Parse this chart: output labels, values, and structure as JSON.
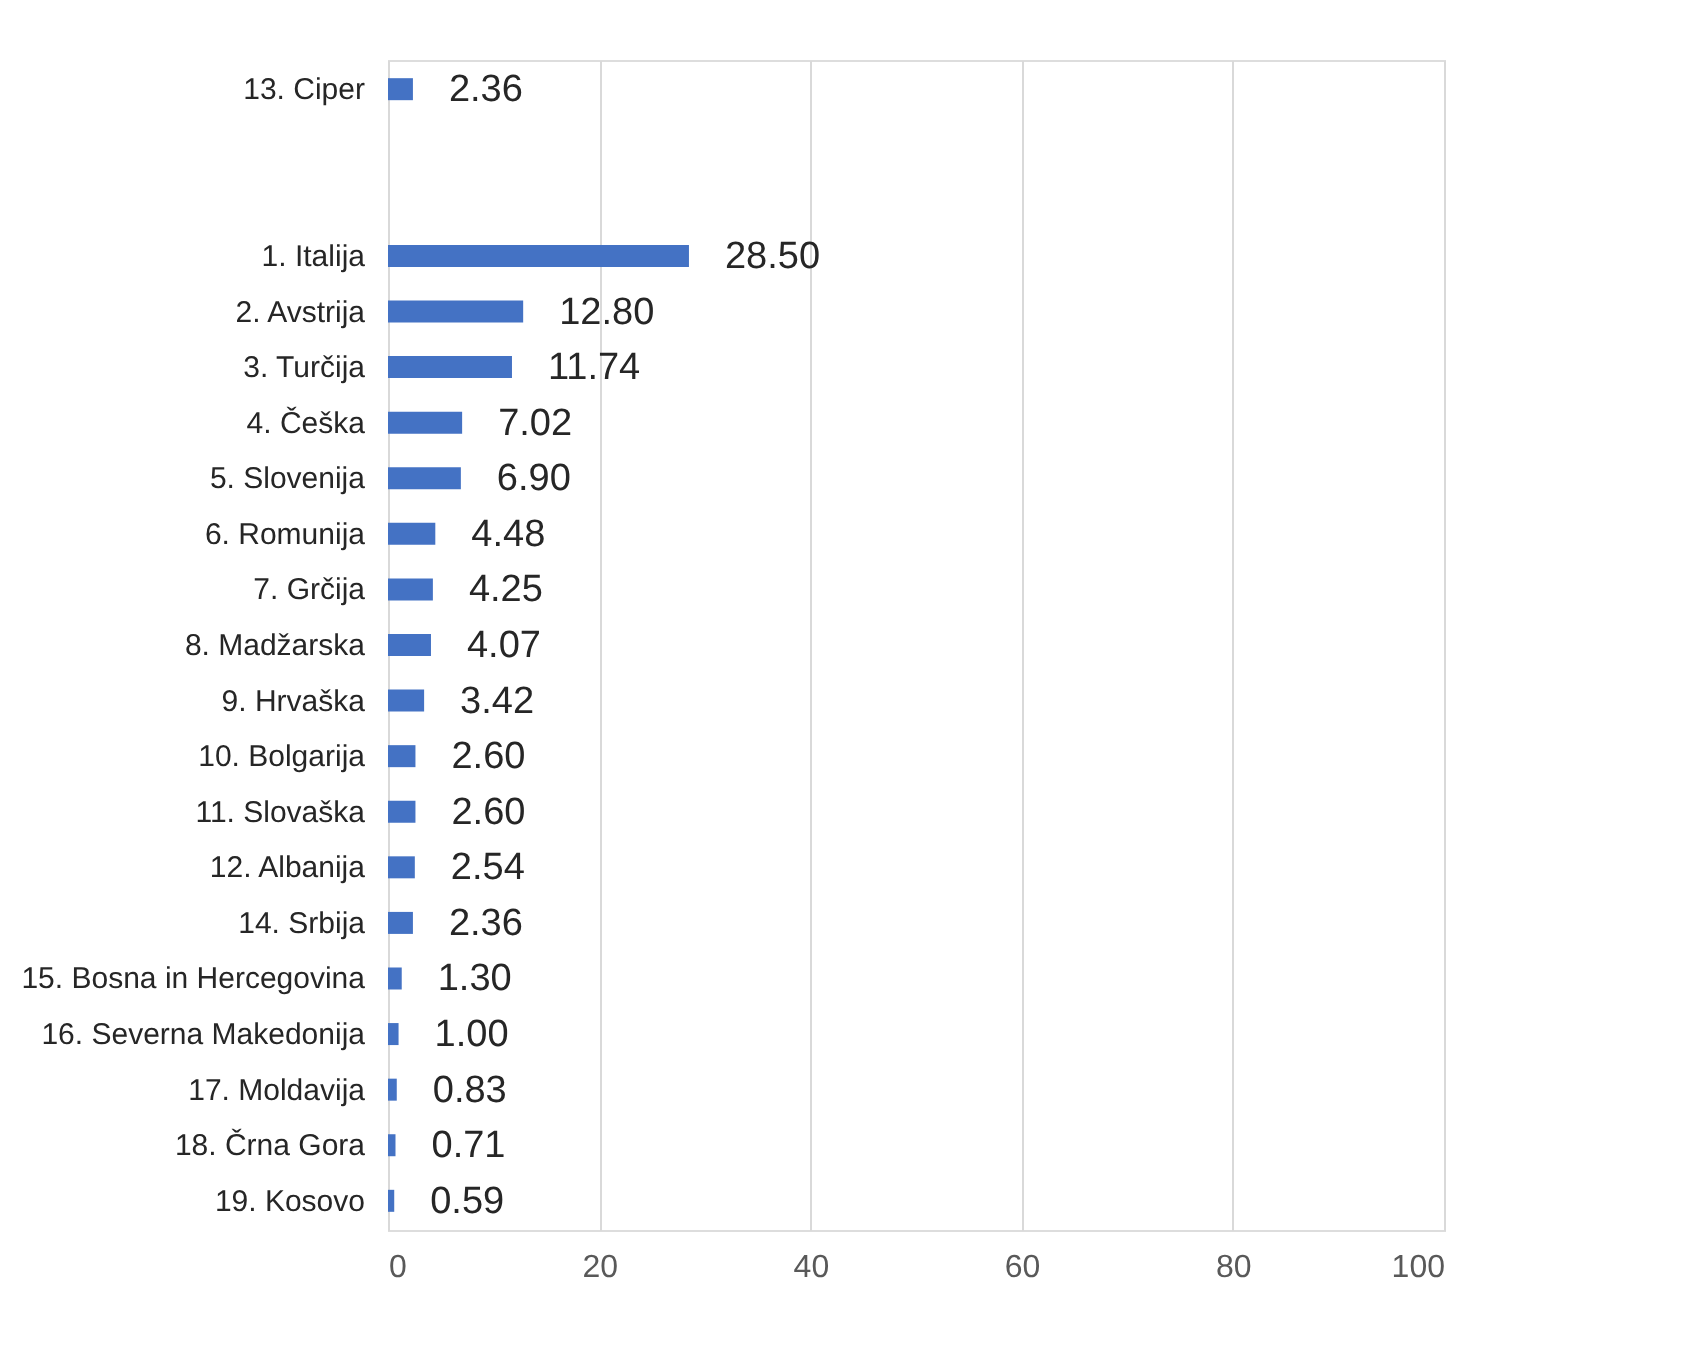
{
  "chart_data": {
    "type": "bar",
    "orientation": "horizontal",
    "categories": [
      "13. Ciper",
      null,
      null,
      "1. Italija",
      "2. Avstrija",
      "3. Turčija",
      "4. Češka",
      "5. Slovenija",
      "6. Romunija",
      "7. Grčija",
      "8. Madžarska",
      "9. Hrvaška",
      "10. Bolgarija",
      "11. Slovaška",
      "12. Albanija",
      "14. Srbija",
      "15. Bosna in Hercegovina",
      "16. Severna Makedonija",
      "17. Moldavija",
      "18. Črna Gora",
      "19. Kosovo"
    ],
    "values": [
      2.36,
      null,
      null,
      28.5,
      12.8,
      11.74,
      7.02,
      6.9,
      4.48,
      4.25,
      4.07,
      3.42,
      2.6,
      2.6,
      2.54,
      2.36,
      1.3,
      1.0,
      0.83,
      0.71,
      0.59
    ],
    "value_labels": [
      "2.36",
      null,
      null,
      "28.50",
      "12.80",
      "11.74",
      "7.02",
      "6.90",
      "4.48",
      "4.25",
      "4.07",
      "3.42",
      "2.60",
      "2.60",
      "2.54",
      "2.36",
      "1.30",
      "1.00",
      "0.83",
      "0.71",
      "0.59"
    ],
    "color": "#4472c4",
    "xlim": [
      0,
      100
    ],
    "xticks": [
      0,
      20,
      40,
      60,
      80,
      100
    ],
    "grid": "x"
  }
}
